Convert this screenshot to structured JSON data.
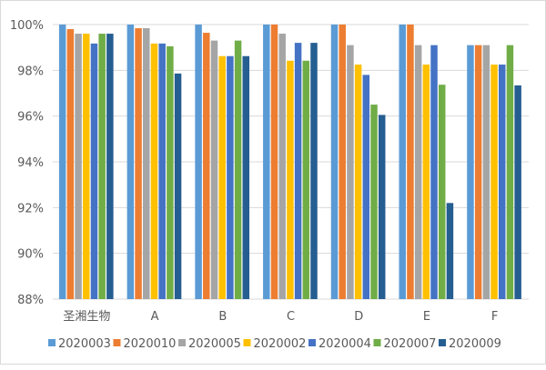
{
  "chart_data": {
    "type": "bar",
    "categories": [
      "圣湘生物",
      "A",
      "B",
      "C",
      "D",
      "E",
      "F"
    ],
    "ylim": [
      88,
      100
    ],
    "yticks": [
      "88%",
      "90%",
      "92%",
      "94%",
      "96%",
      "98%",
      "100%"
    ],
    "ytick_values": [
      88,
      90,
      92,
      94,
      96,
      98,
      100
    ],
    "grid": true,
    "legend_position": "bottom",
    "series": [
      {
        "name": "2020003",
        "color": "#5b9bd5",
        "values": [
          100,
          100,
          100,
          100,
          100,
          100,
          99.1
        ]
      },
      {
        "name": "2020010",
        "color": "#ed7d31",
        "values": [
          99.8,
          99.84,
          99.64,
          100,
          100,
          100,
          99.1
        ]
      },
      {
        "name": "2020005",
        "color": "#a5a5a5",
        "values": [
          99.6,
          99.84,
          99.3,
          99.6,
          99.1,
          99.1,
          99.1
        ]
      },
      {
        "name": "2020002",
        "color": "#ffc000",
        "values": [
          99.6,
          99.17,
          98.62,
          98.42,
          98.25,
          98.25,
          98.25
        ]
      },
      {
        "name": "2020004",
        "color": "#4472c4",
        "values": [
          99.17,
          99.17,
          98.62,
          99.2,
          97.8,
          99.1,
          98.25
        ]
      },
      {
        "name": "2020007",
        "color": "#70ad47",
        "values": [
          99.6,
          99.05,
          99.3,
          98.42,
          96.5,
          97.37,
          99.1
        ]
      },
      {
        "name": "2020009",
        "color": "#255e91",
        "values": [
          99.6,
          97.86,
          98.62,
          99.2,
          96.05,
          92.2,
          97.34
        ]
      }
    ]
  }
}
